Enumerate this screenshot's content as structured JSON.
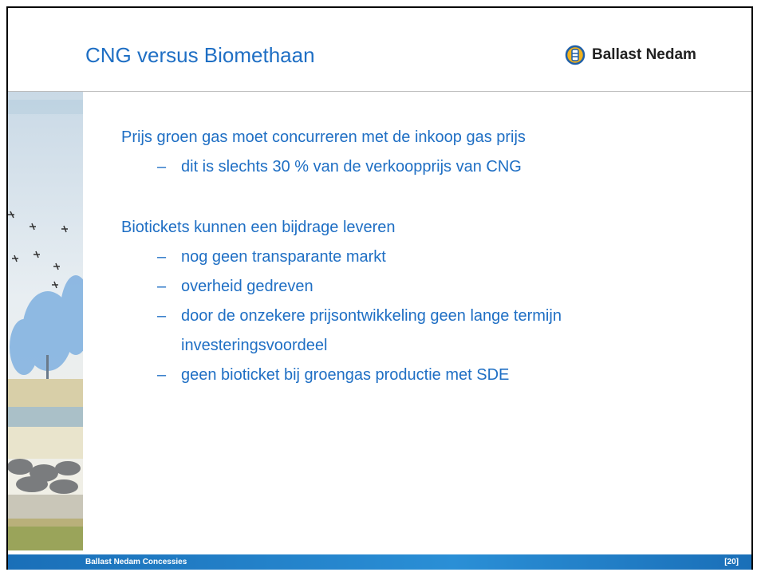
{
  "header": {
    "title": "CNG versus Biomethaan",
    "logo": "Ballast Nedam"
  },
  "body": {
    "items": [
      {
        "level": 1,
        "text": "Prijs groen gas moet concurreren met de  inkoop gas prijs"
      },
      {
        "level": 2,
        "text": "dit is slechts 30 % van de verkoopprijs van CNG"
      },
      {
        "level": 1,
        "text": "Biotickets kunnen een bijdrage leveren"
      },
      {
        "level": 2,
        "text": "nog geen transparante markt"
      },
      {
        "level": 2,
        "text": "overheid gedreven"
      },
      {
        "level": 2,
        "text": "door de onzekere prijsontwikkeling geen lange termijn investeringsvoordeel"
      },
      {
        "level": 2,
        "text": "geen bioticket bij groengas productie met SDE"
      }
    ]
  },
  "footer": {
    "left": "Ballast Nedam Concessies",
    "right": "[20]"
  }
}
